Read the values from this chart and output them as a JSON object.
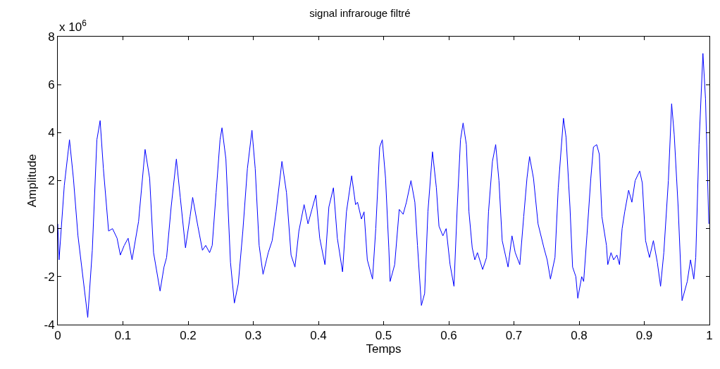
{
  "chart_data": {
    "type": "line",
    "title": "signal infrarouge filtré",
    "xlabel": "Temps",
    "ylabel": "Amplitude",
    "annotations": [
      "x 10$^{6}$"
    ],
    "xlim": [
      0,
      1
    ],
    "xticks": [
      0,
      0.1,
      0.2,
      0.3,
      0.4,
      0.5,
      0.6,
      0.7,
      0.8,
      0.9,
      1
    ],
    "ylim": [
      -4,
      8
    ],
    "yticks": [
      -4,
      -2,
      0,
      2,
      4,
      6,
      8
    ],
    "marker": "none",
    "line_style": "solid",
    "series": [
      {
        "color": "#0000ff",
        "x": [
          0.0,
          0.002,
          0.01,
          0.018,
          0.024,
          0.031,
          0.046,
          0.053,
          0.06,
          0.065,
          0.07,
          0.078,
          0.084,
          0.091,
          0.096,
          0.102,
          0.108,
          0.114,
          0.124,
          0.134,
          0.141,
          0.147,
          0.157,
          0.163,
          0.167,
          0.174,
          0.182,
          0.188,
          0.196,
          0.203,
          0.207,
          0.215,
          0.222,
          0.227,
          0.233,
          0.237,
          0.243,
          0.249,
          0.252,
          0.258,
          0.265,
          0.271,
          0.277,
          0.284,
          0.291,
          0.298,
          0.303,
          0.309,
          0.315,
          0.323,
          0.329,
          0.335,
          0.344,
          0.351,
          0.358,
          0.364,
          0.37,
          0.378,
          0.384,
          0.39,
          0.396,
          0.402,
          0.41,
          0.416,
          0.423,
          0.429,
          0.437,
          0.443,
          0.451,
          0.457,
          0.46,
          0.466,
          0.47,
          0.475,
          0.483,
          0.488,
          0.494,
          0.498,
          0.503,
          0.508,
          0.51,
          0.517,
          0.524,
          0.53,
          0.535,
          0.542,
          0.548,
          0.552,
          0.558,
          0.563,
          0.568,
          0.575,
          0.581,
          0.585,
          0.591,
          0.596,
          0.602,
          0.608,
          0.613,
          0.618,
          0.622,
          0.627,
          0.631,
          0.636,
          0.64,
          0.644,
          0.652,
          0.658,
          0.661,
          0.667,
          0.672,
          0.677,
          0.682,
          0.691,
          0.697,
          0.702,
          0.709,
          0.715,
          0.72,
          0.724,
          0.73,
          0.737,
          0.746,
          0.751,
          0.756,
          0.763,
          0.768,
          0.776,
          0.78,
          0.786,
          0.79,
          0.795,
          0.798,
          0.804,
          0.807,
          0.812,
          0.818,
          0.822,
          0.827,
          0.831,
          0.835,
          0.842,
          0.844,
          0.849,
          0.853,
          0.858,
          0.862,
          0.866,
          0.87,
          0.876,
          0.881,
          0.886,
          0.893,
          0.897,
          0.902,
          0.908,
          0.914,
          0.92,
          0.925,
          0.93,
          0.937,
          0.942,
          0.946,
          0.952,
          0.958,
          0.966,
          0.971,
          0.976,
          0.979,
          0.984,
          0.99,
          0.994,
          0.999
        ],
        "values": [
          0.2,
          -1.3,
          1.8,
          3.7,
          2.1,
          -0.3,
          -3.7,
          -0.9,
          3.7,
          4.5,
          2.5,
          -0.1,
          0.0,
          -0.4,
          -1.1,
          -0.7,
          -0.4,
          -1.3,
          0.3,
          3.3,
          2.1,
          -1.0,
          -2.6,
          -1.6,
          -1.2,
          0.9,
          2.9,
          1.3,
          -0.8,
          0.5,
          1.3,
          0.1,
          -0.9,
          -0.7,
          -1.0,
          -0.7,
          1.5,
          3.7,
          4.2,
          2.9,
          -1.4,
          -3.1,
          -2.3,
          -0.1,
          2.5,
          4.1,
          2.5,
          -0.7,
          -1.9,
          -1.0,
          -0.5,
          0.7,
          2.8,
          1.5,
          -1.1,
          -1.6,
          -0.1,
          1.0,
          0.2,
          0.8,
          1.4,
          -0.4,
          -1.5,
          0.9,
          1.7,
          -0.4,
          -1.8,
          0.7,
          2.2,
          1.0,
          1.1,
          0.4,
          0.7,
          -1.3,
          -2.1,
          0.0,
          3.4,
          3.7,
          2.1,
          -0.8,
          -2.2,
          -1.5,
          0.8,
          0.6,
          1.1,
          2.0,
          1.1,
          -0.7,
          -3.2,
          -2.7,
          0.7,
          3.2,
          1.7,
          0.1,
          -0.3,
          0.0,
          -1.5,
          -2.4,
          0.9,
          3.7,
          4.4,
          3.5,
          0.7,
          -0.8,
          -1.3,
          -1.0,
          -1.7,
          -1.2,
          0.7,
          2.8,
          3.5,
          2.0,
          -0.5,
          -1.6,
          -0.3,
          -1.0,
          -1.5,
          0.5,
          2.1,
          3.0,
          2.1,
          0.2,
          -0.8,
          -1.3,
          -2.1,
          -1.2,
          1.7,
          4.6,
          3.8,
          0.9,
          -1.6,
          -2.0,
          -2.9,
          -2.0,
          -2.2,
          -0.3,
          2.1,
          3.4,
          3.5,
          3.1,
          0.5,
          -0.7,
          -1.5,
          -1.0,
          -1.3,
          -1.1,
          -1.5,
          0.0,
          0.7,
          1.6,
          1.1,
          2.0,
          2.4,
          1.9,
          -0.5,
          -1.2,
          -0.5,
          -1.4,
          -2.4,
          -1.0,
          2.0,
          5.2,
          3.9,
          0.9,
          -3.0,
          -2.2,
          -1.3,
          -2.1,
          -1.2,
          3.5,
          7.3,
          5.4,
          0.2
        ]
      }
    ]
  }
}
